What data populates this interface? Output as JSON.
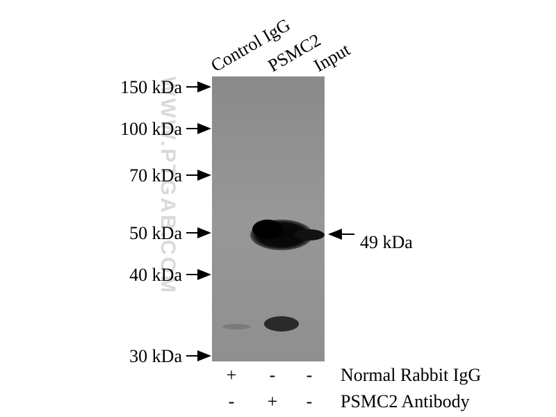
{
  "lanes": [
    "Control IgG",
    "PSMC2",
    "Input"
  ],
  "markers": [
    "150 kDa",
    "100 kDa",
    "70 kDa",
    "50 kDa",
    "40 kDa",
    "30 kDa"
  ],
  "band_label": "49 kDa",
  "conditions": [
    {
      "label": "Normal Rabbit IgG",
      "signs": [
        "+",
        "-",
        "-"
      ]
    },
    {
      "label": "PSMC2 Antibody",
      "signs": [
        "-",
        "+",
        "-"
      ]
    }
  ],
  "watermark": "WWW.PTGAB.COM"
}
